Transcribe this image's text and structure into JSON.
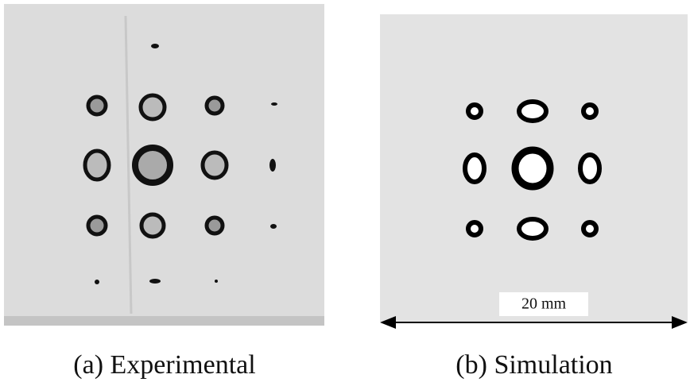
{
  "panels": [
    {
      "caption": "(a) Experimental"
    },
    {
      "caption": "(b) Simulation",
      "scale_label": "20 mm"
    }
  ]
}
